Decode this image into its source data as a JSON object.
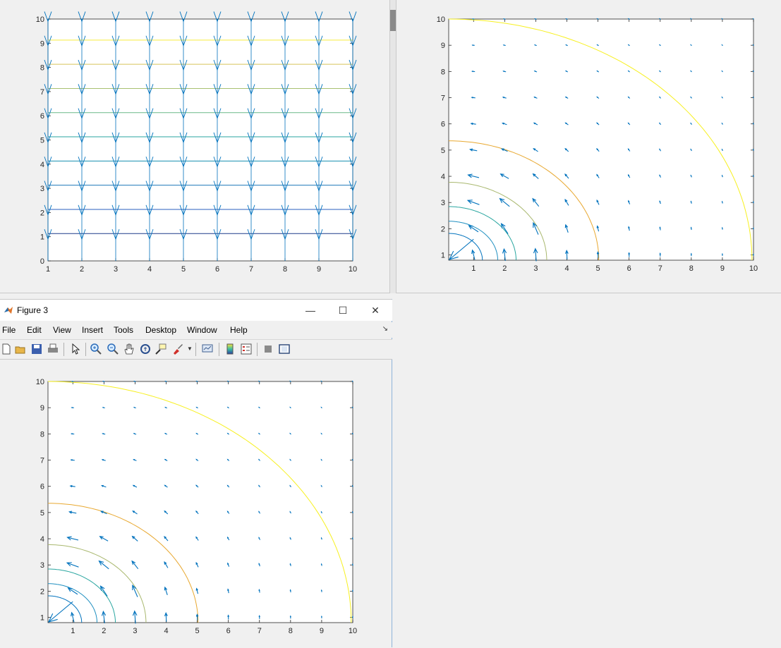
{
  "figure3": {
    "title": "Figure 3",
    "window_controls": {
      "minimize": "—",
      "maximize": "☐",
      "close": "✕"
    },
    "menu": [
      "File",
      "Edit",
      "View",
      "Insert",
      "Tools",
      "Desktop",
      "Window",
      "Help"
    ],
    "toolbar_icons": [
      "new-figure-icon",
      "open-file-icon",
      "save-icon",
      "print-icon",
      "select-pointer-icon",
      "zoom-in-icon",
      "zoom-out-icon",
      "pan-hand-icon",
      "rotate-3d-icon",
      "data-cursor-icon",
      "brush-icon",
      "brush-dropdown-icon",
      "link-plot-icon",
      "colorbar-icon",
      "legend-icon",
      "hide-plot-tools-icon",
      "show-plot-tools-icon"
    ]
  },
  "chart_data": [
    {
      "id": "figure1",
      "type": "quiver+contour",
      "xlim": [
        1,
        10
      ],
      "ylim": [
        0,
        10
      ],
      "xticks": [
        "1",
        "2",
        "3",
        "4",
        "5",
        "6",
        "7",
        "8",
        "9",
        "10"
      ],
      "yticks": [
        "0",
        "1",
        "2",
        "3",
        "4",
        "5",
        "6",
        "7",
        "8",
        "9",
        "10"
      ],
      "contour_lines": [
        {
          "y": 1,
          "color": "#1f3b8a"
        },
        {
          "y": 2,
          "color": "#2a5fbf"
        },
        {
          "y": 3,
          "color": "#1f7ab8"
        },
        {
          "y": 4,
          "color": "#178fb0"
        },
        {
          "y": 5,
          "color": "#2aa6a0"
        },
        {
          "y": 6,
          "color": "#6ab888"
        },
        {
          "y": 7,
          "color": "#a8c070"
        },
        {
          "y": 8,
          "color": "#d8c45a"
        },
        {
          "y": 9,
          "color": "#f7ec3c"
        }
      ],
      "quiver": {
        "color": "#0072bd",
        "direction": "down",
        "x": [
          1,
          2,
          3,
          4,
          5,
          6,
          7,
          8,
          9,
          10
        ],
        "y": [
          1,
          2,
          3,
          4,
          5,
          6,
          7,
          8,
          9,
          10
        ]
      },
      "grid": false
    },
    {
      "id": "figure2",
      "type": "quiver+contour",
      "xlim": [
        0.2,
        10
      ],
      "ylim": [
        0.8,
        10
      ],
      "xticks": [
        "1",
        "2",
        "3",
        "4",
        "5",
        "6",
        "7",
        "8",
        "9",
        "10"
      ],
      "yticks": [
        "1",
        "2",
        "3",
        "4",
        "5",
        "6",
        "7",
        "8",
        "9",
        "10"
      ],
      "arcs": [
        {
          "r": 1.1,
          "color": "#0072bd"
        },
        {
          "r": 1.6,
          "color": "#1f8fc0"
        },
        {
          "r": 2.2,
          "color": "#2aa6a0"
        },
        {
          "r": 3.2,
          "color": "#a9b86f"
        },
        {
          "r": 4.9,
          "color": "#e8a830"
        },
        {
          "r": 9.9,
          "color": "#f7f020"
        }
      ],
      "quiver": {
        "color": "#0072bd",
        "x": [
          1,
          2,
          3,
          4,
          5,
          6,
          7,
          8,
          9,
          10
        ],
        "y": [
          1,
          2,
          3,
          4,
          5,
          6,
          7,
          8,
          9,
          10
        ]
      },
      "grid": false
    },
    {
      "id": "figure3",
      "type": "quiver+contour",
      "xlim": [
        0.2,
        10
      ],
      "ylim": [
        0.8,
        10
      ],
      "xticks": [
        "1",
        "2",
        "3",
        "4",
        "5",
        "6",
        "7",
        "8",
        "9",
        "10"
      ],
      "yticks": [
        "1",
        "2",
        "3",
        "4",
        "5",
        "6",
        "7",
        "8",
        "9",
        "10"
      ],
      "arcs": [
        {
          "r": 1.1,
          "color": "#0072bd"
        },
        {
          "r": 1.6,
          "color": "#1f8fc0"
        },
        {
          "r": 2.2,
          "color": "#2aa6a0"
        },
        {
          "r": 3.2,
          "color": "#a9b86f"
        },
        {
          "r": 4.9,
          "color": "#e8a830"
        },
        {
          "r": 9.9,
          "color": "#f7f020"
        }
      ],
      "quiver": {
        "color": "#0072bd",
        "x": [
          1,
          2,
          3,
          4,
          5,
          6,
          7,
          8,
          9,
          10
        ],
        "y": [
          1,
          2,
          3,
          4,
          5,
          6,
          7,
          8,
          9,
          10
        ]
      },
      "grid": false
    }
  ]
}
